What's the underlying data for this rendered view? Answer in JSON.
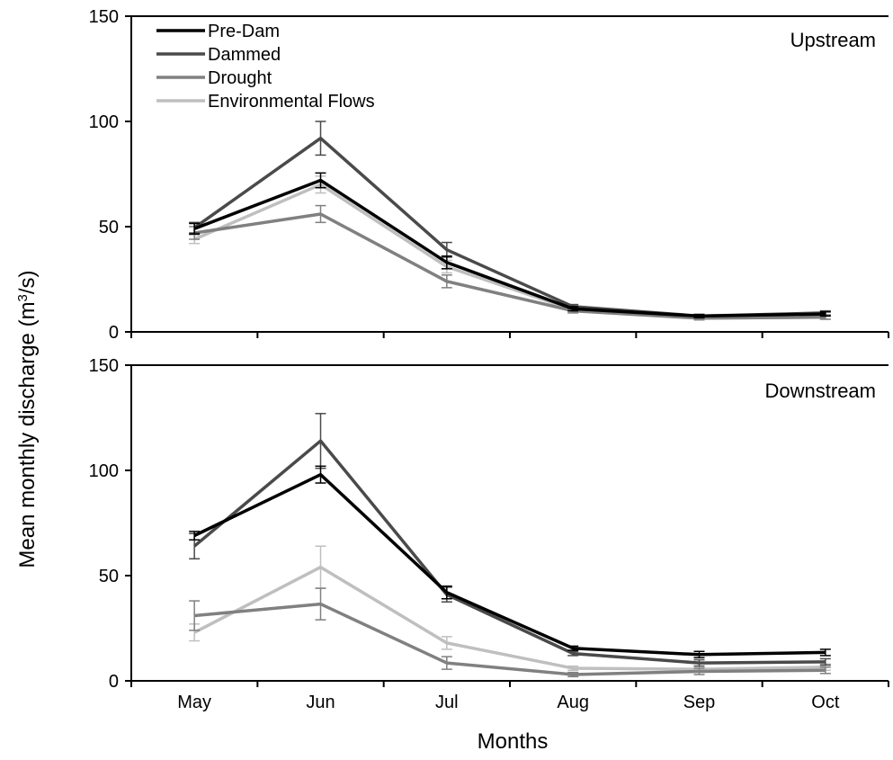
{
  "figure": {
    "ylabel_main": "Mean monthly discharge (m",
    "ylabel_sup": "3",
    "ylabel_tail": "/s)",
    "xlabel": "Months"
  },
  "legend": {
    "entries": [
      "Pre-Dam",
      "Dammed",
      "Drought",
      "Environmental Flows"
    ]
  },
  "chart_data": {
    "type": "line",
    "categories": [
      "May",
      "Jun",
      "Jul",
      "Aug",
      "Sep",
      "Oct"
    ],
    "xlabel": "Months",
    "ylabel": "Mean monthly discharge (m3/s)",
    "ylim": [
      0,
      150
    ],
    "yticks": [
      0,
      50,
      100,
      150
    ],
    "grid": false,
    "legend_position": "top-left of upper panel",
    "colors": {
      "Pre-Dam": "#000000",
      "Dammed": "#4a4a4a",
      "Drought": "#808080",
      "Environmental Flows": "#bfbfbf"
    },
    "panels": [
      {
        "name": "Upstream",
        "series": [
          {
            "name": "Pre-Dam",
            "values": [
              49,
              72,
              33,
              11,
              7.5,
              8.5
            ],
            "errors": [
              2.5,
              3.5,
              3,
              1,
              0.8,
              1
            ]
          },
          {
            "name": "Dammed",
            "values": [
              49.5,
              92,
              39,
              12,
              7.5,
              9
            ],
            "errors": [
              2.5,
              8,
              3.5,
              1,
              0.8,
              1
            ]
          },
          {
            "name": "Drought",
            "values": [
              47,
              56,
              24,
              10,
              6.5,
              7
            ],
            "errors": [
              3,
              4,
              3,
              1,
              0.8,
              1
            ]
          },
          {
            "name": "Environmental Flows",
            "values": [
              44,
              70,
              31,
              10.5,
              6.5,
              7
            ],
            "errors": [
              2,
              4,
              3,
              1,
              0.8,
              1
            ]
          }
        ]
      },
      {
        "name": "Downstream",
        "series": [
          {
            "name": "Pre-Dam",
            "values": [
              69,
              98,
              42,
              15.5,
              12.5,
              13.5
            ],
            "errors": [
              2,
              4,
              3,
              1,
              1.5,
              1.5
            ]
          },
          {
            "name": "Dammed",
            "values": [
              64,
              114,
              41,
              13,
              8.5,
              9
            ],
            "errors": [
              6,
              13,
              3.5,
              1,
              1.5,
              1.5
            ]
          },
          {
            "name": "Drought",
            "values": [
              31,
              36.5,
              8.5,
              3,
              4.5,
              5
            ],
            "errors": [
              7,
              7.5,
              3,
              1,
              1.5,
              1.5
            ]
          },
          {
            "name": "Environmental Flows",
            "values": [
              23,
              54,
              18,
              6,
              5.5,
              6.5
            ],
            "errors": [
              4,
              10,
              3,
              1,
              1.5,
              1.5
            ]
          }
        ]
      }
    ]
  }
}
